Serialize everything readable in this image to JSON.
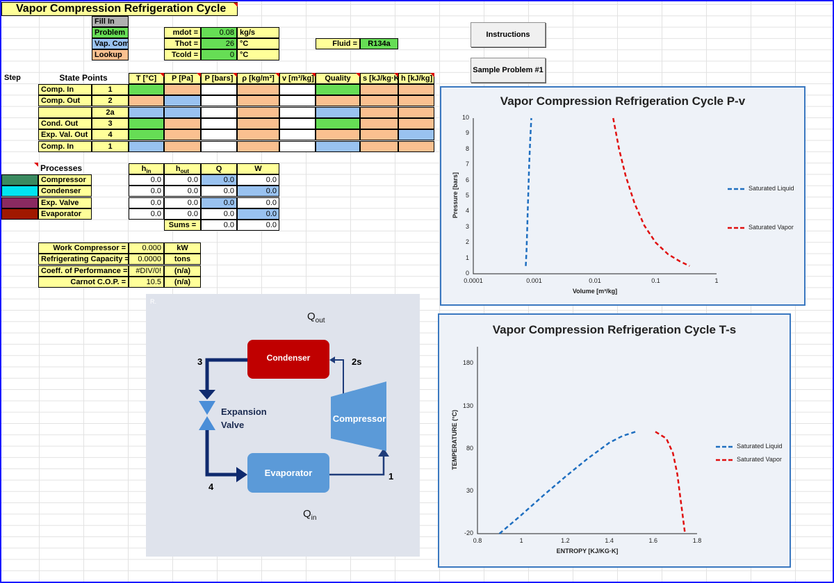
{
  "title": "Vapor Compression Refrigeration Cycle",
  "legend_keys": [
    "Fill In",
    "Problem",
    "Vap. Comp.",
    "Lookup"
  ],
  "inputs": {
    "mdot_label": "mdot =",
    "mdot_value": "0.08",
    "mdot_unit": "kg/s",
    "thot_label": "Thot =",
    "thot_value": "26",
    "thot_unit": "°C",
    "tcold_label": "Tcold =",
    "tcold_value": "0",
    "tcold_unit": "°C",
    "fluid_label": "Fluid =",
    "fluid_value": "R134a"
  },
  "buttons": {
    "instructions": "Instructions",
    "sample": "Sample Problem #1"
  },
  "state_table": {
    "step_label": "Step",
    "title": "State Points",
    "headers": [
      "T [°C]",
      "P [Pa]",
      "P [bars]",
      "ρ [kg/m³]",
      "v [m³/kg]",
      "Quality",
      "s [kJ/kg·K]",
      "h [kJ/kg]"
    ],
    "rows": [
      {
        "name": "Comp. In",
        "num": "1"
      },
      {
        "name": "Comp. Out",
        "num": "2"
      },
      {
        "name": "",
        "num": "2a"
      },
      {
        "name": "Cond. Out",
        "num": "3"
      },
      {
        "name": "Exp. Val. Out",
        "num": "4"
      },
      {
        "name": "Comp. In",
        "num": "1"
      }
    ],
    "colors": [
      [
        "grn",
        "org",
        "wht",
        "org",
        "wht",
        "grn",
        "org",
        "org"
      ],
      [
        "org",
        "blu",
        "wht",
        "org",
        "wht",
        "org",
        "org",
        "org"
      ],
      [
        "blu",
        "blu",
        "wht",
        "org",
        "wht",
        "blu",
        "org",
        "org"
      ],
      [
        "grn",
        "org",
        "wht",
        "org",
        "wht",
        "grn",
        "org",
        "org"
      ],
      [
        "grn",
        "org",
        "wht",
        "org",
        "wht",
        "org",
        "org",
        "blu"
      ],
      [
        "blu",
        "org",
        "wht",
        "org",
        "wht",
        "blu",
        "org",
        "org"
      ]
    ]
  },
  "processes": {
    "title": "Processes",
    "headers": [
      "h_in",
      "h_out",
      "Q",
      "W"
    ],
    "rows": [
      {
        "name": "Compressor",
        "color": "#3a8a60",
        "vals": [
          "0.0",
          "0.0",
          "0.0",
          "0.0"
        ]
      },
      {
        "name": "Condenser",
        "color": "#00e5f0",
        "vals": [
          "0.0",
          "0.0",
          "0.0",
          "0.0"
        ]
      },
      {
        "name": "Exp. Valve",
        "color": "#8a2a60",
        "vals": [
          "0.0",
          "0.0",
          "0.0",
          "0.0"
        ]
      },
      {
        "name": "Evaporator",
        "color": "#a01800",
        "vals": [
          "0.0",
          "0.0",
          "0.0",
          "0.0"
        ]
      }
    ],
    "sums_label": "Sums =",
    "sums": [
      "0.0",
      "0.0"
    ]
  },
  "results": [
    {
      "label": "Work Compressor =",
      "value": "0.000",
      "unit": "kW"
    },
    {
      "label": "Refrigerating Capacity =",
      "value": "0.0000",
      "unit": "tons"
    },
    {
      "label": "Coeff. of Performance =",
      "value": "#DIV/0!",
      "unit": "(n/a)"
    },
    {
      "label": "Carnot C.O.P. =",
      "value": "10.5",
      "unit": "(n/a)"
    }
  ],
  "diagram": {
    "corner": "R.",
    "qout": "Q",
    "qout_sub": "out",
    "qin": "Q",
    "qin_sub": "in",
    "condenser": "Condenser",
    "evaporator": "Evaporator",
    "compressor": "Compressor",
    "valve_line1": "Expansion",
    "valve_line2": "Valve",
    "label_3": "3",
    "label_2s": "2s",
    "label_4": "4",
    "label_1": "1"
  },
  "chart_data": [
    {
      "type": "line",
      "title": "Vapor Compression Refrigeration Cycle P-v",
      "xlabel": "Volume  [m³/kg]",
      "ylabel": "Pressure  [bars]",
      "xscale": "log",
      "xlim": [
        0.0001,
        1
      ],
      "ylim": [
        0,
        10
      ],
      "xticks": [
        "0.0001",
        "0.001",
        "0.01",
        "0.1",
        "1"
      ],
      "yticks": [
        "0",
        "1",
        "2",
        "3",
        "4",
        "5",
        "6",
        "7",
        "8",
        "9",
        "10"
      ],
      "legend_placement": "right",
      "series": [
        {
          "name": "Saturated Liquid",
          "color": "#1f6fc0",
          "style": "dashed",
          "x": [
            0.00073,
            0.00075,
            0.00077,
            0.00079,
            0.00081,
            0.00083,
            0.00086,
            0.0009
          ],
          "y": [
            0.5,
            1.5,
            2.9,
            4.3,
            5.7,
            7.0,
            8.5,
            10.0
          ]
        },
        {
          "name": "Saturated Vapor",
          "color": "#e01010",
          "style": "dashed",
          "x": [
            0.02,
            0.025,
            0.032,
            0.045,
            0.065,
            0.1,
            0.16,
            0.25,
            0.36
          ],
          "y": [
            10.0,
            8.0,
            6.3,
            4.5,
            3.1,
            2.0,
            1.25,
            0.8,
            0.5
          ]
        }
      ]
    },
    {
      "type": "line",
      "title": "Vapor Compression Refrigeration Cycle T-s",
      "xlabel": "ENTROPY  [KJ/KG·K]",
      "ylabel": "TEMPERATURE  (°C)",
      "xlim": [
        0.8,
        1.8
      ],
      "ylim": [
        -20,
        200
      ],
      "xticks": [
        "0.8",
        "1",
        "1.2",
        "1.4",
        "1.6",
        "1.8"
      ],
      "yticks": [
        "-20",
        "30",
        "80",
        "130",
        "180"
      ],
      "legend_placement": "right",
      "series": [
        {
          "name": "Saturated Liquid",
          "color": "#1f6fc0",
          "style": "dashed",
          "x": [
            0.9,
            1.0,
            1.1,
            1.2,
            1.3,
            1.4,
            1.46,
            1.52
          ],
          "y": [
            -20,
            2,
            25,
            47,
            68,
            87,
            95,
            100
          ]
        },
        {
          "name": "Saturated Vapor",
          "color": "#e01010",
          "style": "dashed",
          "x": [
            1.61,
            1.66,
            1.69,
            1.71,
            1.725,
            1.735,
            1.745
          ],
          "y": [
            100,
            92,
            75,
            50,
            20,
            0,
            -20
          ]
        }
      ]
    }
  ]
}
